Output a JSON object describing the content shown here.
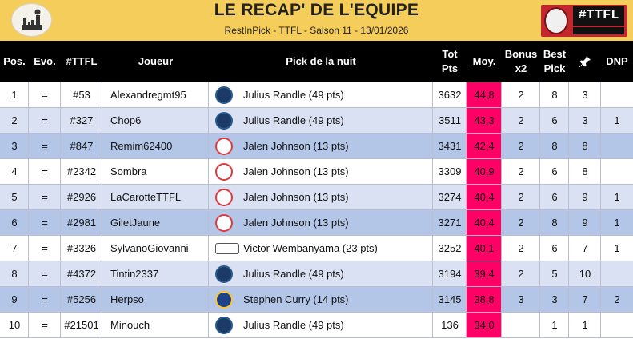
{
  "header": {
    "title": "LE RECAP' DE L'EQUIPE",
    "subtitle": "RestInPick - TTFL - Saison 11 - 13/01/2026",
    "brand_tag": "#TTFL"
  },
  "columns": {
    "pos": "Pos.",
    "evo": "Evo.",
    "ttfl": "#TTFL",
    "joueur": "Joueur",
    "pick": "Pick de la nuit",
    "tot_line1": "Tot",
    "tot_line2": "Pts",
    "moy": "Moy.",
    "bonus_line1": "Bonus",
    "bonus_line2": "x2",
    "best_line1": "Best",
    "best_line2": "Pick",
    "dnp": "DNP"
  },
  "colors": {
    "header_bg": "#f5cd5a",
    "thead_bg": "#000000",
    "moy_bg": "#ff0066",
    "row_alt": "#d9e1f2",
    "row_highlight": "#b4c6e7"
  },
  "rows": [
    {
      "pos": "1",
      "evo": "=",
      "ttfl": "#53",
      "joueur": "Alexandregmt95",
      "team": "min",
      "pick": "Julius Randle (49 pts)",
      "tot": "3632",
      "moy": "44,8",
      "bonus": "2",
      "best": "8",
      "pinned": "3",
      "dnp": ""
    },
    {
      "pos": "2",
      "evo": "=",
      "ttfl": "#327",
      "joueur": "Chop6",
      "team": "min",
      "pick": "Julius Randle (49 pts)",
      "tot": "3511",
      "moy": "43,3",
      "bonus": "2",
      "best": "6",
      "pinned": "3",
      "dnp": "1"
    },
    {
      "pos": "3",
      "evo": "=",
      "ttfl": "#847",
      "joueur": "Remim62400",
      "team": "atl",
      "pick": "Jalen Johnson (13 pts)",
      "tot": "3431",
      "moy": "42,4",
      "bonus": "2",
      "best": "8",
      "pinned": "8",
      "dnp": ""
    },
    {
      "pos": "4",
      "evo": "=",
      "ttfl": "#2342",
      "joueur": "Sombra",
      "team": "atl",
      "pick": "Jalen Johnson (13 pts)",
      "tot": "3309",
      "moy": "40,9",
      "bonus": "2",
      "best": "6",
      "pinned": "8",
      "dnp": ""
    },
    {
      "pos": "5",
      "evo": "=",
      "ttfl": "#2926",
      "joueur": "LaCarotteTTFL",
      "team": "atl",
      "pick": "Jalen Johnson (13 pts)",
      "tot": "3274",
      "moy": "40,4",
      "bonus": "2",
      "best": "6",
      "pinned": "9",
      "dnp": "1"
    },
    {
      "pos": "6",
      "evo": "=",
      "ttfl": "#2981",
      "joueur": "GiletJaune",
      "team": "atl",
      "pick": "Jalen Johnson (13 pts)",
      "tot": "3271",
      "moy": "40,4",
      "bonus": "2",
      "best": "8",
      "pinned": "9",
      "dnp": "1"
    },
    {
      "pos": "7",
      "evo": "=",
      "ttfl": "#3326",
      "joueur": "SylvanoGiovanni",
      "team": "sas",
      "pick": "Victor Wembanyama (23 pts)",
      "tot": "3252",
      "moy": "40,1",
      "bonus": "2",
      "best": "6",
      "pinned": "7",
      "dnp": "1"
    },
    {
      "pos": "8",
      "evo": "=",
      "ttfl": "#4372",
      "joueur": "Tintin2337",
      "team": "min",
      "pick": "Julius Randle (49 pts)",
      "tot": "3194",
      "moy": "39,4",
      "bonus": "2",
      "best": "5",
      "pinned": "10",
      "dnp": ""
    },
    {
      "pos": "9",
      "evo": "=",
      "ttfl": "#5256",
      "joueur": "Herpso",
      "team": "gsw",
      "pick": "Stephen Curry (14 pts)",
      "tot": "3145",
      "moy": "38,8",
      "bonus": "3",
      "best": "3",
      "pinned": "7",
      "dnp": "2"
    },
    {
      "pos": "10",
      "evo": "=",
      "ttfl": "#21501",
      "joueur": "Minouch",
      "team": "min",
      "pick": "Julius Randle (49 pts)",
      "tot": "136",
      "moy": "34,0",
      "bonus": "",
      "best": "1",
      "pinned": "1",
      "dnp": ""
    }
  ]
}
